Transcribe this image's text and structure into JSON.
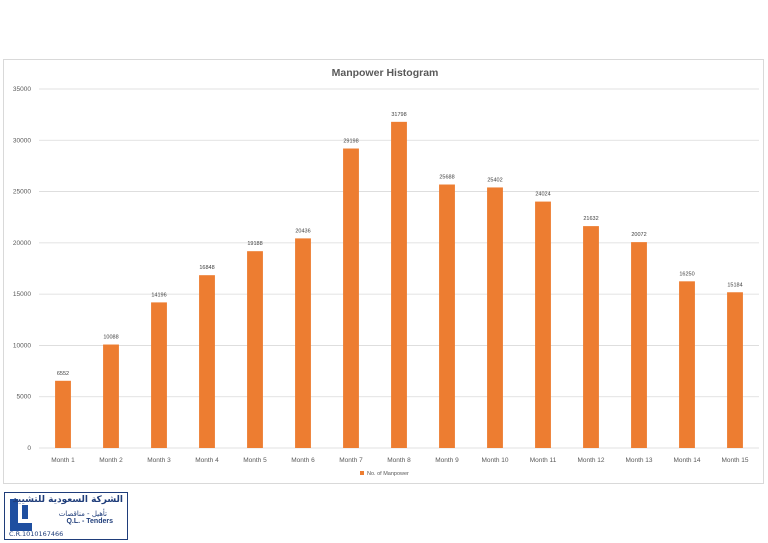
{
  "chart_data": {
    "type": "bar",
    "title": "Manpower Histogram",
    "xlabel": "",
    "ylabel": "",
    "categories": [
      "Month 1",
      "Month 2",
      "Month 3",
      "Month 4",
      "Month 5",
      "Month 6",
      "Month 7",
      "Month 8",
      "Month 9",
      "Month 10",
      "Month 11",
      "Month 12",
      "Month 13",
      "Month 14",
      "Month 15"
    ],
    "series": [
      {
        "name": "No. of Manpower",
        "color": "#ed7d31",
        "values": [
          6552,
          10088,
          14196,
          16848,
          19188,
          20436,
          29198,
          31798,
          25688,
          25402,
          24024,
          21632,
          20072,
          16250,
          15184
        ]
      }
    ],
    "ylim": [
      0,
      35000
    ],
    "yticks": [
      0,
      5000,
      10000,
      15000,
      20000,
      25000,
      30000,
      35000
    ],
    "grid": true,
    "legend": "bottom",
    "data_labels": true
  },
  "stamp": {
    "arabic_name": "الشركة السعودية للتشييد",
    "arabic_sub": "تأهيل - مناقصات",
    "english_sub": "Q.L. - Tenders",
    "cr_line": "C.R.1010167466"
  }
}
